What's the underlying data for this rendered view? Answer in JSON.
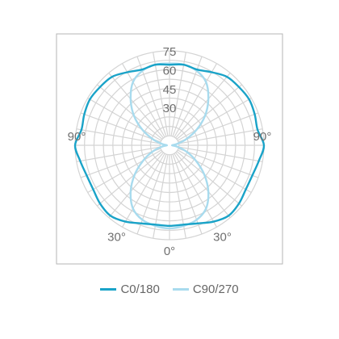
{
  "chart_data": {
    "type": "polar-line",
    "radial_ticks": [
      {
        "value": 30,
        "label": "30"
      },
      {
        "value": 45,
        "label": "45"
      },
      {
        "value": 60,
        "label": "60"
      },
      {
        "value": 75,
        "label": "75"
      }
    ],
    "radial_max": 75,
    "angle_labels": [
      {
        "angle": 0,
        "label": "0°"
      },
      {
        "angle": 30,
        "label": "30°"
      },
      {
        "angle": -30,
        "label": "30°"
      },
      {
        "angle": 90,
        "label": "90°"
      },
      {
        "angle": -90,
        "label": "90°"
      }
    ],
    "grid": true,
    "legend_position": "bottom",
    "series": [
      {
        "name": "C0/180",
        "color": "#1aa3c8",
        "angles": [
          0,
          10,
          20,
          30,
          40,
          50,
          60,
          70,
          80,
          90,
          100,
          110,
          120,
          130,
          140,
          150,
          160,
          170,
          180
        ],
        "values": [
          64,
          64,
          66,
          70,
          73,
          72,
          70,
          70,
          72,
          75,
          71,
          72,
          73,
          72,
          71,
          67,
          64,
          65,
          64
        ]
      },
      {
        "name": "C90/270",
        "color": "#a8dbee",
        "angles": [
          0,
          10,
          20,
          30,
          40,
          50,
          60,
          70,
          80,
          90,
          100,
          110,
          120,
          130,
          140,
          150,
          160,
          170,
          180
        ],
        "values": [
          66,
          65,
          63,
          58,
          48,
          36,
          24,
          14,
          6,
          2,
          6,
          14,
          25,
          37,
          48,
          58,
          63,
          65,
          65
        ]
      }
    ]
  }
}
